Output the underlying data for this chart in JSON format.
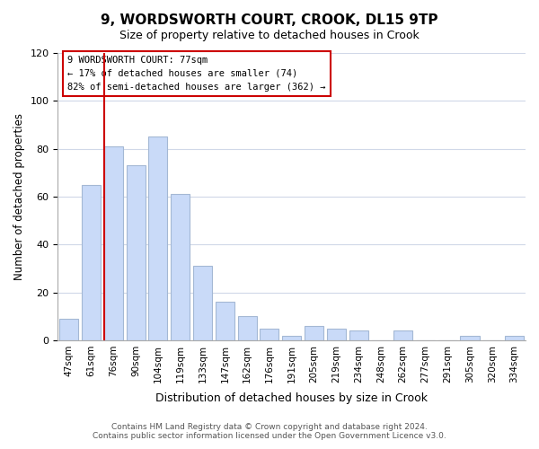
{
  "title": "9, WORDSWORTH COURT, CROOK, DL15 9TP",
  "subtitle": "Size of property relative to detached houses in Crook",
  "xlabel": "Distribution of detached houses by size in Crook",
  "ylabel": "Number of detached properties",
  "bar_labels": [
    "47sqm",
    "61sqm",
    "76sqm",
    "90sqm",
    "104sqm",
    "119sqm",
    "133sqm",
    "147sqm",
    "162sqm",
    "176sqm",
    "191sqm",
    "205sqm",
    "219sqm",
    "234sqm",
    "248sqm",
    "262sqm",
    "277sqm",
    "291sqm",
    "305sqm",
    "320sqm",
    "334sqm"
  ],
  "bar_values": [
    9,
    65,
    81,
    73,
    85,
    61,
    31,
    16,
    10,
    5,
    2,
    6,
    5,
    4,
    0,
    4,
    0,
    0,
    2,
    0,
    2
  ],
  "bar_color": "#c9daf8",
  "bar_edge_color": "#a4b8d4",
  "highlight_color": "#cc0000",
  "vline_bar_index": 2,
  "annotation_title": "9 WORDSWORTH COURT: 77sqm",
  "annotation_line1": "← 17% of detached houses are smaller (74)",
  "annotation_line2": "82% of semi-detached houses are larger (362) →",
  "annotation_box_color": "#ffffff",
  "annotation_box_edge": "#cc0000",
  "ylim": [
    0,
    120
  ],
  "yticks": [
    0,
    20,
    40,
    60,
    80,
    100,
    120
  ],
  "footer_line1": "Contains HM Land Registry data © Crown copyright and database right 2024.",
  "footer_line2": "Contains public sector information licensed under the Open Government Licence v3.0.",
  "background_color": "#ffffff",
  "grid_color": "#d0d8e8"
}
